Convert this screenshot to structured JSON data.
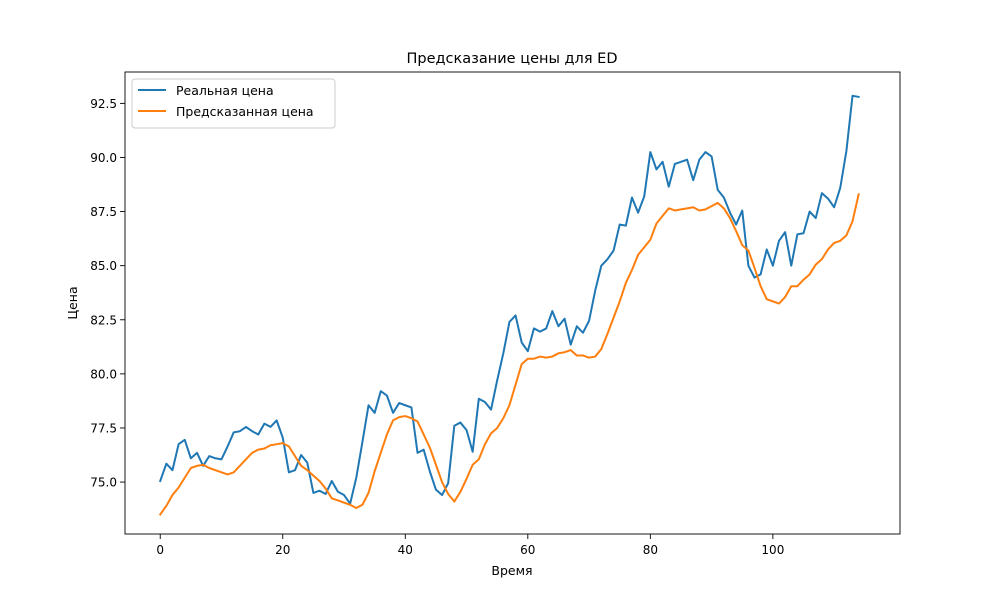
{
  "chart_data": {
    "type": "line",
    "title": "Предсказание цены для ED",
    "xlabel": "Время",
    "ylabel": "Цена",
    "xlim": [
      -5.75,
      120.75
    ],
    "ylim": [
      72.6,
      93.95
    ],
    "xticks": [
      0,
      20,
      40,
      60,
      80,
      100
    ],
    "xtick_labels": [
      "0",
      "20",
      "40",
      "60",
      "80",
      "100"
    ],
    "yticks": [
      75.0,
      77.5,
      80.0,
      82.5,
      85.0,
      87.5,
      90.0,
      92.5
    ],
    "ytick_labels": [
      "75.0",
      "77.5",
      "80.0",
      "82.5",
      "85.0",
      "87.5",
      "90.0",
      "92.5"
    ],
    "grid": false,
    "legend_position": "top-left",
    "series": [
      {
        "name": "Реальная цена",
        "color": "#1f77b4",
        "x": [
          0,
          1,
          2,
          3,
          4,
          5,
          6,
          7,
          8,
          9,
          10,
          11,
          12,
          13,
          14,
          15,
          16,
          17,
          18,
          19,
          20,
          21,
          22,
          23,
          24,
          25,
          26,
          27,
          28,
          29,
          30,
          31,
          32,
          33,
          34,
          35,
          36,
          37,
          38,
          39,
          40,
          41,
          42,
          43,
          44,
          45,
          46,
          47,
          48,
          49,
          50,
          51,
          52,
          53,
          54,
          55,
          56,
          57,
          58,
          59,
          60,
          61,
          62,
          63,
          64,
          65,
          66,
          67,
          68,
          69,
          70,
          71,
          72,
          73,
          74,
          75,
          76,
          77,
          78,
          79,
          80,
          81,
          82,
          83,
          84,
          85,
          86,
          87,
          88,
          89,
          90,
          91,
          92,
          93,
          94,
          95,
          96,
          97,
          98,
          99,
          100,
          101,
          102,
          103,
          104,
          105,
          106,
          107,
          108,
          109,
          110,
          111,
          112,
          113,
          114
        ],
        "values": [
          75.05,
          75.85,
          75.55,
          76.75,
          76.95,
          76.1,
          76.35,
          75.75,
          76.2,
          76.1,
          76.05,
          76.65,
          77.3,
          77.35,
          77.55,
          77.35,
          77.2,
          77.7,
          77.55,
          77.85,
          77.05,
          75.45,
          75.55,
          76.25,
          75.9,
          74.5,
          74.6,
          74.45,
          75.05,
          74.55,
          74.4,
          74.0,
          75.2,
          76.85,
          78.55,
          78.2,
          79.2,
          79.0,
          78.2,
          78.65,
          78.55,
          78.45,
          76.35,
          76.5,
          75.5,
          74.65,
          74.4,
          74.95,
          77.6,
          77.75,
          77.4,
          76.4,
          78.85,
          78.7,
          78.35,
          79.7,
          80.95,
          82.4,
          82.7,
          81.45,
          81.05,
          82.1,
          81.95,
          82.1,
          82.9,
          82.2,
          82.55,
          81.35,
          82.2,
          81.9,
          82.45,
          83.85,
          85.0,
          85.3,
          85.7,
          86.9,
          86.85,
          88.15,
          87.45,
          88.2,
          90.25,
          89.45,
          89.8,
          88.65,
          89.7,
          89.8,
          89.9,
          88.95,
          89.9,
          90.25,
          90.05,
          88.5,
          88.15,
          87.45,
          86.9,
          87.55,
          85.0,
          84.45,
          84.6,
          85.75,
          85.0,
          86.15,
          86.55,
          85.0,
          86.45,
          86.5,
          87.5,
          87.2,
          88.35,
          88.1,
          87.7,
          88.6,
          90.3,
          92.85,
          92.8
        ]
      },
      {
        "name": "Предсказанная цена",
        "color": "#ff7f0e",
        "x": [
          0,
          1,
          2,
          3,
          4,
          5,
          6,
          7,
          8,
          9,
          10,
          11,
          12,
          13,
          14,
          15,
          16,
          17,
          18,
          19,
          20,
          21,
          22,
          23,
          24,
          25,
          26,
          27,
          28,
          29,
          30,
          31,
          32,
          33,
          34,
          35,
          36,
          37,
          38,
          39,
          40,
          41,
          42,
          43,
          44,
          45,
          46,
          47,
          48,
          49,
          50,
          51,
          52,
          53,
          54,
          55,
          56,
          57,
          58,
          59,
          60,
          61,
          62,
          63,
          64,
          65,
          66,
          67,
          68,
          69,
          70,
          71,
          72,
          73,
          74,
          75,
          76,
          77,
          78,
          79,
          80,
          81,
          82,
          83,
          84,
          85,
          86,
          87,
          88,
          89,
          90,
          91,
          92,
          93,
          94,
          95,
          96,
          97,
          98,
          99,
          100,
          101,
          102,
          103,
          104,
          105,
          106,
          107,
          108,
          109,
          110,
          111,
          112,
          113,
          114
        ],
        "values": [
          73.5,
          73.9,
          74.4,
          74.75,
          75.2,
          75.65,
          75.75,
          75.8,
          75.65,
          75.55,
          75.45,
          75.35,
          75.45,
          75.75,
          76.05,
          76.35,
          76.5,
          76.55,
          76.7,
          76.75,
          76.8,
          76.65,
          76.2,
          75.75,
          75.55,
          75.3,
          75.05,
          74.7,
          74.25,
          74.15,
          74.05,
          73.95,
          73.8,
          73.95,
          74.5,
          75.5,
          76.35,
          77.2,
          77.85,
          78.0,
          78.05,
          77.95,
          77.8,
          77.2,
          76.6,
          75.8,
          75.0,
          74.45,
          74.1,
          74.55,
          75.15,
          75.8,
          76.05,
          76.75,
          77.25,
          77.5,
          77.95,
          78.55,
          79.5,
          80.45,
          80.7,
          80.7,
          80.8,
          80.75,
          80.8,
          80.95,
          81.0,
          81.1,
          80.85,
          80.85,
          80.75,
          80.8,
          81.15,
          81.85,
          82.6,
          83.35,
          84.2,
          84.8,
          85.5,
          85.85,
          86.2,
          86.95,
          87.3,
          87.65,
          87.55,
          87.6,
          87.65,
          87.7,
          87.55,
          87.6,
          87.75,
          87.9,
          87.65,
          87.2,
          86.6,
          85.95,
          85.7,
          84.9,
          84.05,
          83.45,
          83.35,
          83.25,
          83.55,
          84.05,
          84.05,
          84.35,
          84.6,
          85.05,
          85.3,
          85.75,
          86.05,
          86.15,
          86.4,
          87.05,
          88.3
        ]
      }
    ]
  }
}
